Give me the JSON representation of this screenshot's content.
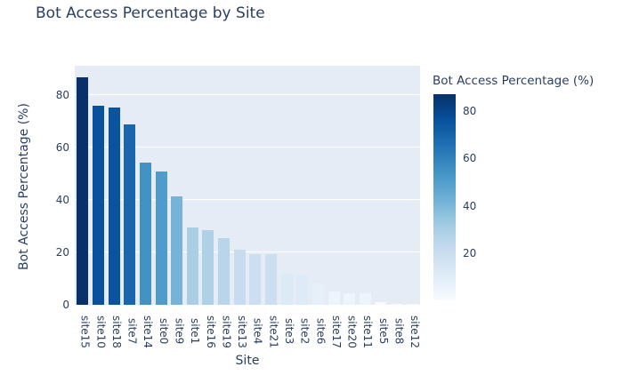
{
  "header": {
    "title": "Bot Access Percentage by Site"
  },
  "x_axis": {
    "title": "Site"
  },
  "y_axis": {
    "title": "Bot Access Percentage (%)",
    "ticks": [
      0,
      20,
      40,
      60,
      80
    ]
  },
  "colorbar": {
    "title": "Bot Access Percentage (%)",
    "ticks": [
      20,
      40,
      60,
      80
    ]
  },
  "colors": {
    "text": "#2a3f5f",
    "plot_background": "#e5ecf6",
    "gridline": "#ffffff",
    "colorscale_name": "Blues",
    "colorscale": [
      "#f7fbff",
      "#deebf7",
      "#c6dbef",
      "#9ecae1",
      "#6baed6",
      "#4292c6",
      "#2171b5",
      "#08519c",
      "#08306b"
    ]
  },
  "chart_data": {
    "type": "bar",
    "title": "Bot Access Percentage by Site",
    "xlabel": "Site",
    "ylabel": "Bot Access Percentage (%)",
    "categories": [
      "site15",
      "site10",
      "site18",
      "site7",
      "site14",
      "site0",
      "site9",
      "site1",
      "site16",
      "site19",
      "site13",
      "site4",
      "site21",
      "site3",
      "site2",
      "site6",
      "site17",
      "site20",
      "site11",
      "site5",
      "site8",
      "site12"
    ],
    "values": [
      87,
      76,
      75.5,
      69,
      54.5,
      51,
      41.5,
      29.5,
      28.5,
      25.5,
      21,
      19.5,
      19.5,
      12,
      11.5,
      8,
      5,
      4.5,
      4.5,
      1,
      0.5,
      0.3
    ],
    "ylim": [
      0,
      91.35
    ],
    "yticks": [
      0,
      20,
      40,
      60,
      80
    ],
    "grid": true,
    "legend": "colorbar-right",
    "color_range": [
      0.3,
      87
    ]
  }
}
